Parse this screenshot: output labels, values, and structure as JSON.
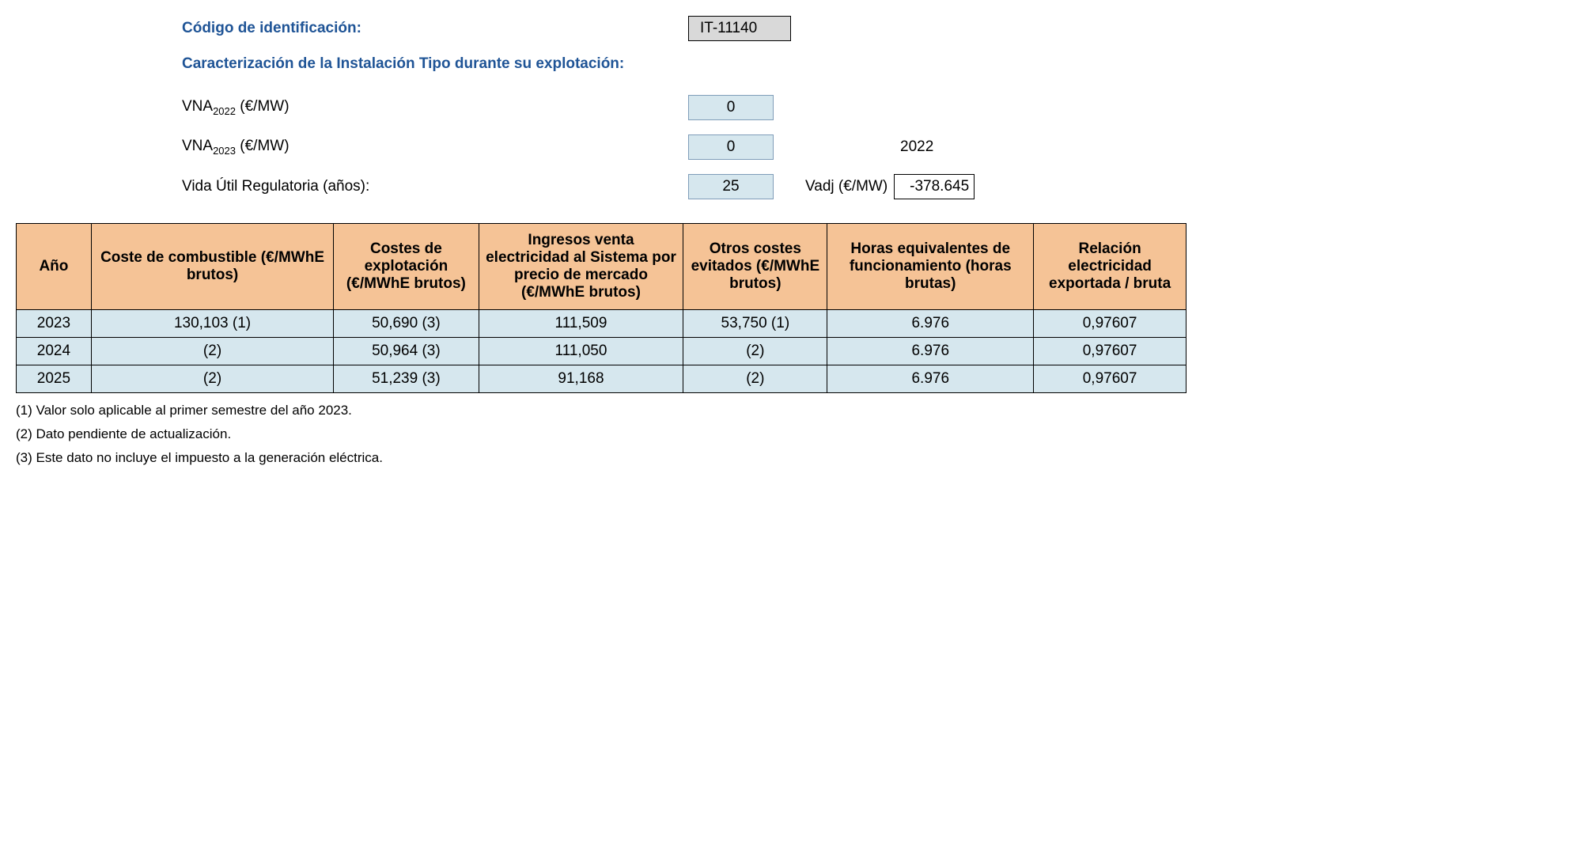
{
  "header": {
    "code_label": "Código de identificación:",
    "code_value": "IT-11140",
    "section_title": "Caracterización de la Instalación Tipo durante su explotación:",
    "vna2022_label_pre": "VNA",
    "vna2022_label_sub": "2022",
    "vna2022_label_post": " (€/MW)",
    "vna2022_value": "0",
    "vna2023_label_pre": "VNA",
    "vna2023_label_sub": "2023",
    "vna2023_label_post": " (€/MW)",
    "vna2023_value": "0",
    "year_right": "2022",
    "vida_label": "Vida Útil Regulatoria (años):",
    "vida_value": "25",
    "vadj_label": "Vadj (€/MW)",
    "vadj_value": "-378.645"
  },
  "table": {
    "columns": [
      "Año",
      "Coste de combustible (€/MWhE brutos)",
      "Costes de explotación (€/MWhE brutos)",
      "Ingresos venta electricidad al Sistema por precio de mercado (€/MWhE brutos)",
      "Otros costes evitados (€/MWhE brutos)",
      "Horas equivalentes de funcionamiento (horas brutas)",
      "Relación electricidad exportada / bruta"
    ],
    "col_widths": [
      "80px",
      "300px",
      "170px",
      "250px",
      "170px",
      "250px",
      "180px"
    ],
    "rows": [
      [
        "2023",
        "130,103 (1)",
        "50,690 (3)",
        "111,509",
        "53,750 (1)",
        "6.976",
        "0,97607"
      ],
      [
        "2024",
        "(2)",
        "50,964 (3)",
        "111,050",
        "(2)",
        "6.976",
        "0,97607"
      ],
      [
        "2025",
        "(2)",
        "51,239 (3)",
        "91,168",
        "(2)",
        "6.976",
        "0,97607"
      ]
    ]
  },
  "footnotes": [
    "(1) Valor solo aplicable al primer semestre del año 2023.",
    "(2) Dato pendiente de actualización.",
    "(3) Este dato no incluye el impuesto a la generación eléctrica."
  ]
}
